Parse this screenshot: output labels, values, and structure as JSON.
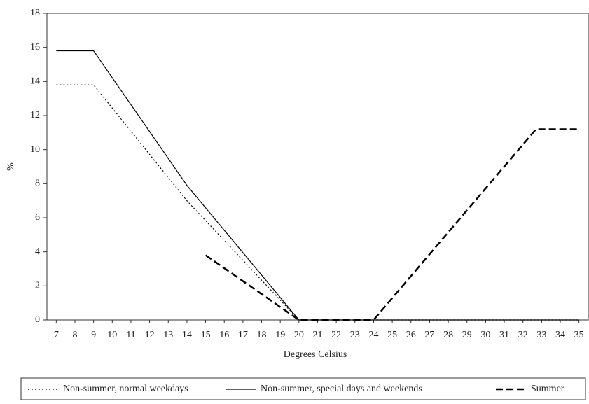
{
  "chart_data": {
    "type": "line",
    "ylabel": "%",
    "xlabel": "Degrees Celsius",
    "xlim": [
      6.5,
      35.5
    ],
    "ylim": [
      0,
      18
    ],
    "xticks": [
      7,
      8,
      9,
      10,
      11,
      12,
      13,
      14,
      15,
      16,
      17,
      18,
      19,
      20,
      21,
      22,
      23,
      24,
      25,
      26,
      27,
      28,
      29,
      30,
      31,
      32,
      33,
      34,
      35
    ],
    "yticks": [
      0,
      2,
      4,
      6,
      8,
      10,
      12,
      14,
      16,
      18
    ],
    "legend": "bottom",
    "series": [
      {
        "name": "Non-summer, normal weekdays",
        "color": "#000000",
        "style": "dotted",
        "x": [
          7,
          9,
          14,
          20,
          35
        ],
        "values": [
          13.8,
          13.8,
          7,
          0,
          0
        ]
      },
      {
        "name": "Non-summer, special days and weekends",
        "color": "#000000",
        "style": "solid",
        "x": [
          7,
          9,
          14,
          20,
          35
        ],
        "values": [
          15.8,
          15.8,
          7.9,
          0,
          0
        ]
      },
      {
        "name": "Summer",
        "color": "#000000",
        "style": "dashed",
        "x": [
          15,
          20,
          24,
          32.7,
          35
        ],
        "values": [
          3.8,
          0,
          0,
          11.2,
          11.2
        ]
      }
    ]
  }
}
